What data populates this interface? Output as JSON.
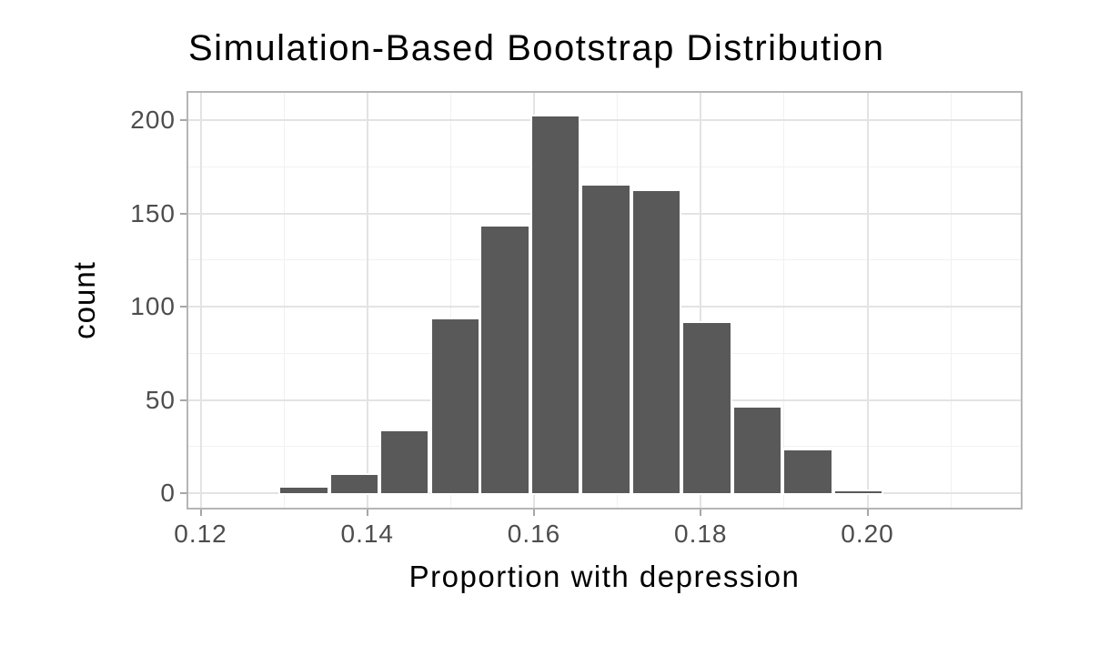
{
  "chart_data": {
    "type": "bar",
    "subtype": "histogram",
    "title": "Simulation-Based Bootstrap Distribution",
    "xlabel": "Proportion with depression",
    "ylabel": "count",
    "x_ticks": [
      0.12,
      0.14,
      0.16,
      0.18,
      0.2
    ],
    "x_tick_labels": [
      "0.12",
      "0.14",
      "0.16",
      "0.18",
      "0.20"
    ],
    "x_minor_ticks": [
      0.13,
      0.15,
      0.17,
      0.19,
      0.21
    ],
    "y_ticks": [
      0,
      50,
      100,
      150,
      200
    ],
    "y_tick_labels": [
      "0",
      "50",
      "100",
      "150",
      "200"
    ],
    "y_minor_ticks": [
      25,
      75,
      125,
      175
    ],
    "xlim": [
      0.1185,
      0.2185
    ],
    "ylim": [
      -8,
      215
    ],
    "grid": "major+minor",
    "legend": "none",
    "bin_width": 0.006,
    "bins": [
      {
        "x_min": 0.1293,
        "x_max": 0.1354,
        "count": 4
      },
      {
        "x_min": 0.1354,
        "x_max": 0.1414,
        "count": 11
      },
      {
        "x_min": 0.1414,
        "x_max": 0.1475,
        "count": 34
      },
      {
        "x_min": 0.1475,
        "x_max": 0.1535,
        "count": 94
      },
      {
        "x_min": 0.1535,
        "x_max": 0.1596,
        "count": 144
      },
      {
        "x_min": 0.1596,
        "x_max": 0.1656,
        "count": 203
      },
      {
        "x_min": 0.1656,
        "x_max": 0.1717,
        "count": 166
      },
      {
        "x_min": 0.1717,
        "x_max": 0.1777,
        "count": 163
      },
      {
        "x_min": 0.1777,
        "x_max": 0.1838,
        "count": 92
      },
      {
        "x_min": 0.1838,
        "x_max": 0.1898,
        "count": 47
      },
      {
        "x_min": 0.1898,
        "x_max": 0.1959,
        "count": 24
      },
      {
        "x_min": 0.1959,
        "x_max": 0.2019,
        "count": 2
      }
    ]
  },
  "colors": {
    "background": "#ffffff",
    "bar_fill": "#595959",
    "bar_stroke": "#ffffff",
    "panel_border": "#b5b5b5",
    "grid_major": "#e3e3e3",
    "grid_minor": "#f1f1f1",
    "tick_mark": "#a6a6a6",
    "tick_label": "#4d4d4d",
    "title_text": "#000000",
    "axis_title_text": "#000000"
  }
}
